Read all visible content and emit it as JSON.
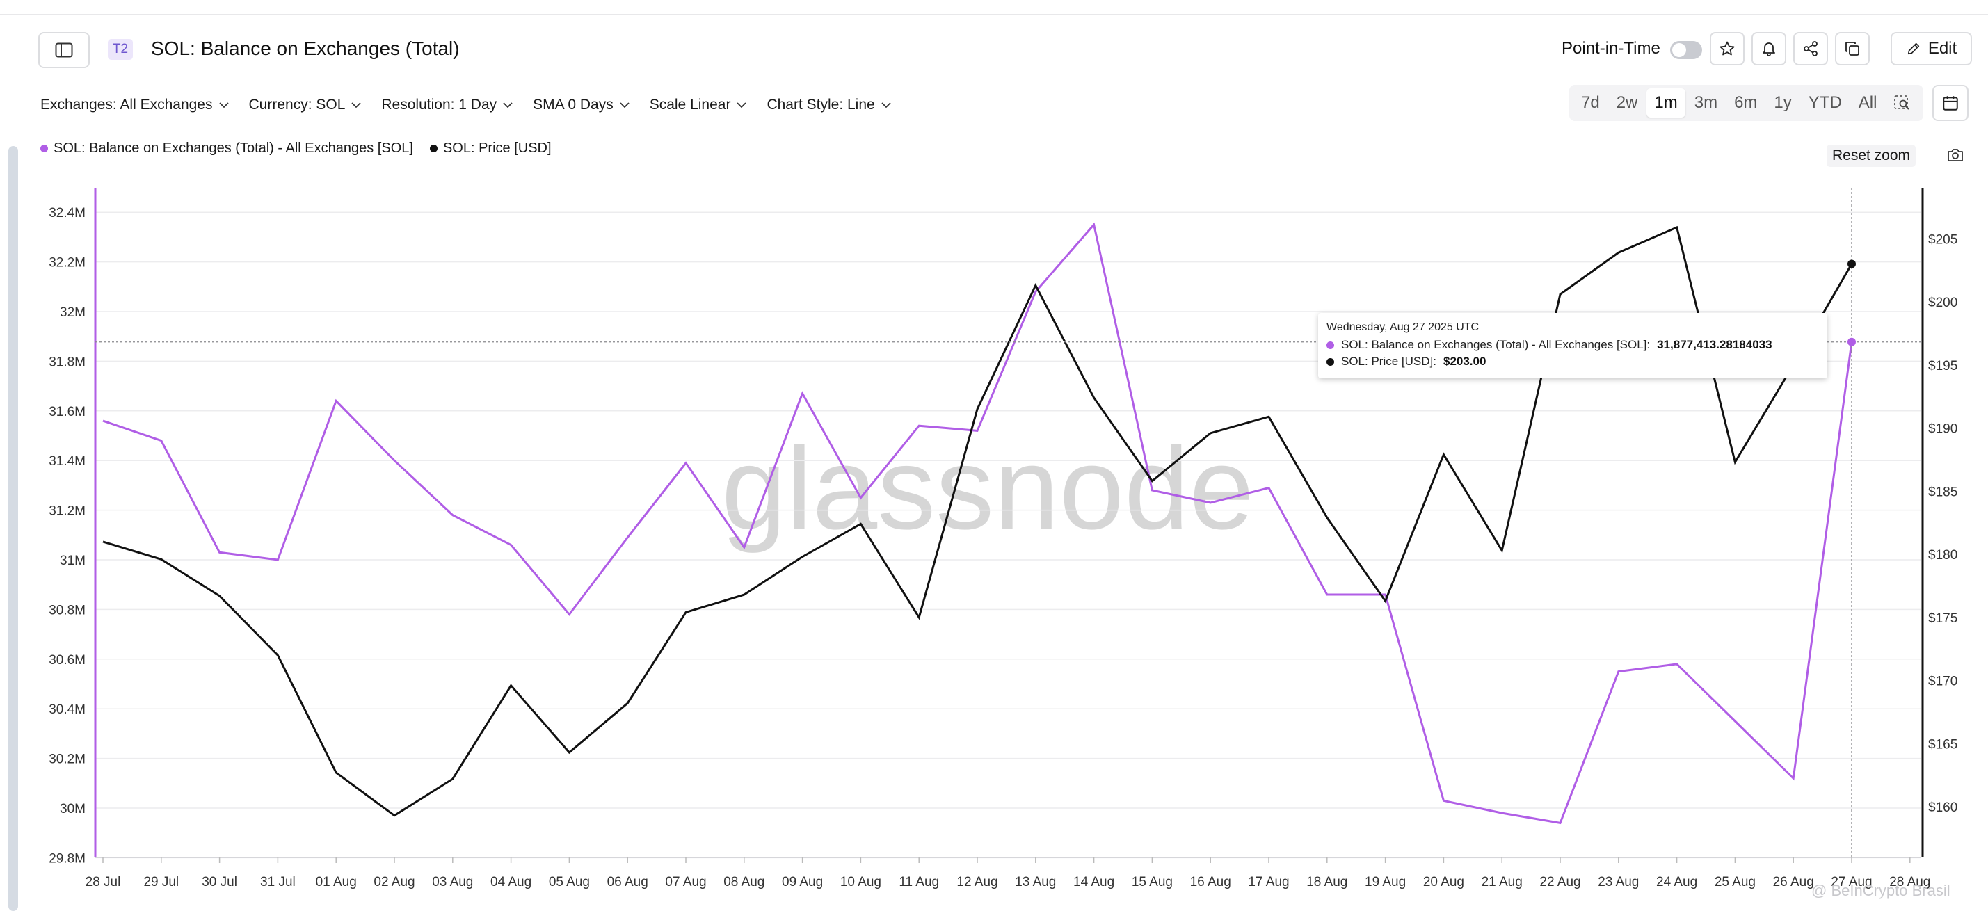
{
  "header": {
    "tier": "T2",
    "title": "SOL: Balance on Exchanges (Total)",
    "point_in_time_label": "Point-in-Time",
    "edit_label": "Edit"
  },
  "filters": [
    {
      "label": "Exchanges: All Exchanges"
    },
    {
      "label": "Currency: SOL"
    },
    {
      "label": "Resolution: 1 Day"
    },
    {
      "label": "SMA 0 Days"
    },
    {
      "label": "Scale Linear"
    },
    {
      "label": "Chart Style: Line"
    }
  ],
  "ranges": [
    {
      "label": "7d"
    },
    {
      "label": "2w"
    },
    {
      "label": "1m",
      "active": true
    },
    {
      "label": "3m"
    },
    {
      "label": "6m"
    },
    {
      "label": "1y"
    },
    {
      "label": "YTD"
    },
    {
      "label": "All"
    }
  ],
  "reset_zoom": "Reset zoom",
  "watermark": "glassnode",
  "corner_watermark": "@ BeInCrypto Brasil",
  "colors": {
    "balance": "#b05ee6",
    "price": "#111111",
    "accent": "#6e56cf"
  },
  "tooltip": {
    "date": "Wednesday, Aug 27 2025 UTC",
    "balance_label": "SOL: Balance on Exchanges (Total) - All Exchanges [SOL]:",
    "balance_value": "31,877,413.28184033",
    "price_label": "SOL: Price [USD]:",
    "price_value": "$203.00"
  },
  "chart_data": {
    "type": "line",
    "x": [
      "28 Jul",
      "29 Jul",
      "30 Jul",
      "31 Jul",
      "01 Aug",
      "02 Aug",
      "03 Aug",
      "04 Aug",
      "05 Aug",
      "06 Aug",
      "07 Aug",
      "08 Aug",
      "09 Aug",
      "10 Aug",
      "11 Aug",
      "12 Aug",
      "13 Aug",
      "14 Aug",
      "15 Aug",
      "16 Aug",
      "17 Aug",
      "18 Aug",
      "19 Aug",
      "20 Aug",
      "21 Aug",
      "22 Aug",
      "23 Aug",
      "24 Aug",
      "25 Aug",
      "26 Aug",
      "27 Aug"
    ],
    "x_ticks": [
      "28 Jul",
      "29 Jul",
      "30 Jul",
      "31 Jul",
      "01 Aug",
      "02 Aug",
      "03 Aug",
      "04 Aug",
      "05 Aug",
      "06 Aug",
      "07 Aug",
      "08 Aug",
      "09 Aug",
      "10 Aug",
      "11 Aug",
      "12 Aug",
      "13 Aug",
      "14 Aug",
      "15 Aug",
      "16 Aug",
      "17 Aug",
      "18 Aug",
      "19 Aug",
      "20 Aug",
      "21 Aug",
      "22 Aug",
      "23 Aug",
      "24 Aug",
      "25 Aug",
      "26 Aug",
      "27 Aug",
      "28 Aug"
    ],
    "series": [
      {
        "name": "SOL: Balance on Exchanges (Total) - All Exchanges [SOL]",
        "axis": "left",
        "color": "#b05ee6",
        "values": [
          31560000,
          31480000,
          31030000,
          31000000,
          31640000,
          31400000,
          31180000,
          31060000,
          30780000,
          31090000,
          31390000,
          31050000,
          31670000,
          31250000,
          31540000,
          31520000,
          32080000,
          32350000,
          31280000,
          31230000,
          31290000,
          30860000,
          30860000,
          30030000,
          29980000,
          29940000,
          30550000,
          30580000,
          30350000,
          30120000,
          31877413.28
        ]
      },
      {
        "name": "SOL: Price [USD]",
        "axis": "right",
        "color": "#111111",
        "values": [
          181.0,
          179.6,
          176.7,
          172.0,
          162.7,
          159.3,
          162.2,
          169.6,
          164.3,
          168.2,
          175.4,
          176.8,
          179.8,
          182.4,
          175.0,
          191.5,
          201.3,
          192.4,
          185.8,
          189.6,
          190.9,
          182.9,
          176.3,
          187.9,
          180.3,
          200.6,
          203.9,
          205.9,
          187.3,
          195.0,
          203.0
        ]
      }
    ],
    "y_left": {
      "min": 29800000,
      "max": 32400000,
      "ticks": [
        29800000,
        30000000,
        30200000,
        30400000,
        30600000,
        30800000,
        31000000,
        31200000,
        31400000,
        31600000,
        31800000,
        32000000,
        32200000,
        32400000
      ],
      "tick_labels": [
        "29.8M",
        "30M",
        "30.2M",
        "30.4M",
        "30.6M",
        "30.8M",
        "31M",
        "31.2M",
        "31.4M",
        "31.6M",
        "31.8M",
        "32M",
        "32.2M",
        "32.4M"
      ]
    },
    "y_right": {
      "min": 156,
      "max": 209,
      "ticks": [
        160,
        165,
        170,
        175,
        180,
        185,
        190,
        195,
        200,
        205
      ],
      "tick_labels": [
        "$160",
        "$165",
        "$170",
        "$175",
        "$180",
        "$185",
        "$190",
        "$195",
        "$200",
        "$205"
      ]
    },
    "hover_index": 30,
    "grid": true,
    "legend": "top-left"
  }
}
